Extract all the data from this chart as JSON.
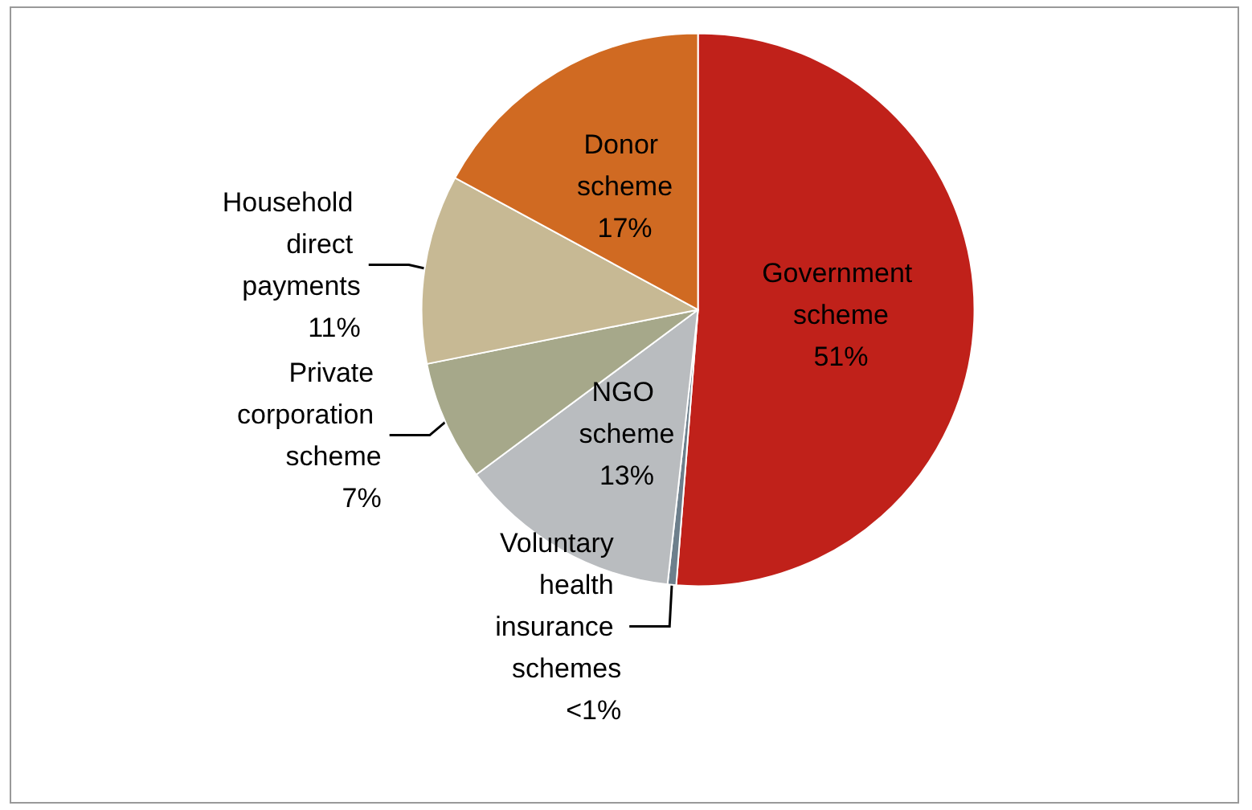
{
  "chart_data": {
    "type": "pie",
    "categories": [
      "Government scheme",
      "Voluntary health insurance schemes",
      "NGO scheme",
      "Private corporation scheme",
      "Household direct payments",
      "Donor scheme"
    ],
    "values": [
      51,
      0.5,
      13,
      7,
      11,
      17
    ],
    "value_labels": [
      "51%",
      "<1%",
      "13%",
      "7%",
      "11%",
      "17%"
    ],
    "colors": [
      "#c0211a",
      "#6d7f8c",
      "#b9bcbf",
      "#a6a88a",
      "#c7b994",
      "#d06a22"
    ]
  }
}
